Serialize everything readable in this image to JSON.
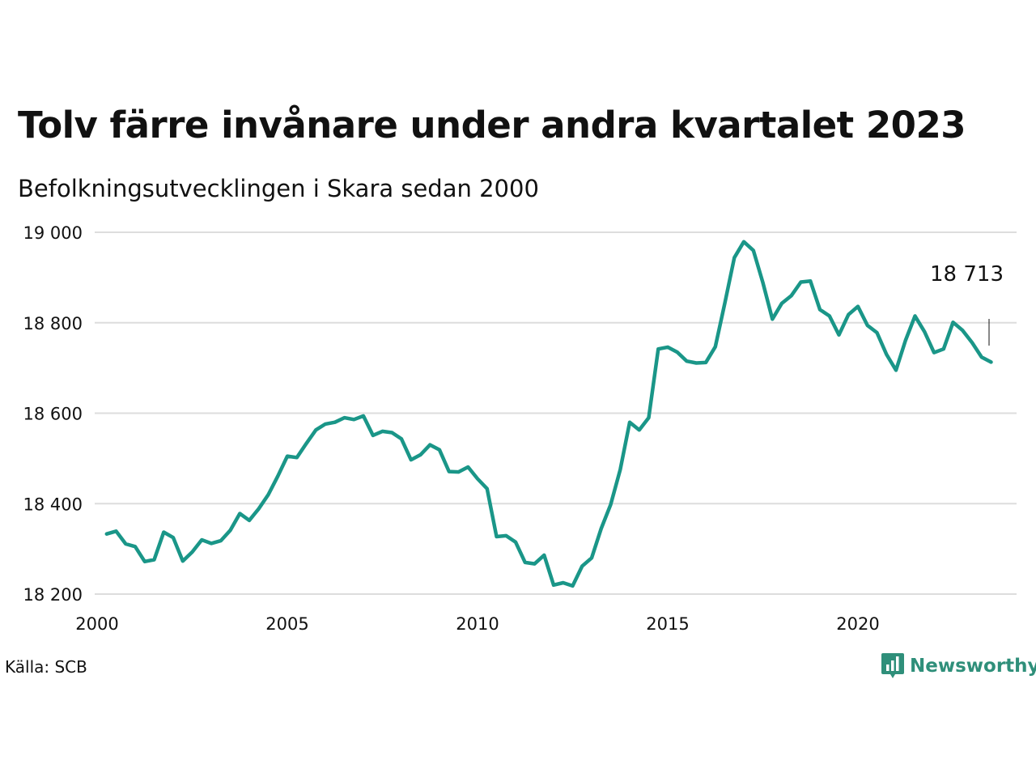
{
  "title": "Tolv färre invånare under andra kvartalet 2023",
  "subtitle": "Befolkningsutvecklingen i Skara sedan 2000",
  "source": "Källa: SCB",
  "brand": {
    "name": "Newsworthy",
    "icon": "newsworthy-logo-icon",
    "color": "#2f8f7a"
  },
  "colors": {
    "line": "#1a9688",
    "grid": "#dddddd",
    "text": "#111111"
  },
  "chart_data": {
    "type": "line",
    "title": "",
    "xlabel": "",
    "ylabel": "",
    "xlim": [
      2000,
      2023.5
    ],
    "ylim": [
      18200,
      19000
    ],
    "y_ticks": [
      18200,
      18400,
      18600,
      18800,
      19000
    ],
    "y_tick_labels": [
      "18 200",
      "18 400",
      "18 600",
      "18 800",
      "19 000"
    ],
    "x_ticks": [
      2000,
      2005,
      2010,
      2015,
      2020
    ],
    "x_tick_labels": [
      "2000",
      "2005",
      "2010",
      "2015",
      "2020"
    ],
    "grid": "horizontal",
    "end_label": "18 713",
    "x": [
      2000.25,
      2000.5,
      2000.75,
      2001.0,
      2001.25,
      2001.5,
      2001.75,
      2002.0,
      2002.25,
      2002.5,
      2002.75,
      2003.0,
      2003.25,
      2003.5,
      2003.75,
      2004.0,
      2004.25,
      2004.5,
      2004.75,
      2005.0,
      2005.25,
      2005.5,
      2005.75,
      2006.0,
      2006.25,
      2006.5,
      2006.75,
      2007.0,
      2007.25,
      2007.5,
      2007.75,
      2008.0,
      2008.25,
      2008.5,
      2008.75,
      2009.0,
      2009.25,
      2009.5,
      2009.75,
      2010.0,
      2010.25,
      2010.5,
      2010.75,
      2011.0,
      2011.25,
      2011.5,
      2011.75,
      2012.0,
      2012.25,
      2012.5,
      2012.75,
      2013.0,
      2013.25,
      2013.5,
      2013.75,
      2014.0,
      2014.25,
      2014.5,
      2014.75,
      2015.0,
      2015.25,
      2015.5,
      2015.75,
      2016.0,
      2016.25,
      2016.5,
      2016.75,
      2017.0,
      2017.25,
      2017.5,
      2017.75,
      2018.0,
      2018.25,
      2018.5,
      2018.75,
      2019.0,
      2019.25,
      2019.5,
      2019.75,
      2020.0,
      2020.25,
      2020.5,
      2020.75,
      2021.0,
      2021.25,
      2021.5,
      2021.75,
      2022.0,
      2022.25,
      2022.5,
      2022.75,
      2023.0,
      2023.25,
      2023.5
    ],
    "series": [
      {
        "values": [
          18333,
          18339,
          18311,
          18305,
          18272,
          18276,
          18337,
          18325,
          18273,
          18293,
          18320,
          18312,
          18318,
          18341,
          18378,
          18363,
          18389,
          18420,
          18461,
          18505,
          18502,
          18533,
          18563,
          18576,
          18580,
          18590,
          18586,
          18594,
          18551,
          18560,
          18557,
          18543,
          18497,
          18508,
          18530,
          18519,
          18471,
          18470,
          18481,
          18455,
          18433,
          18327,
          18329,
          18315,
          18270,
          18267,
          18286,
          18220,
          18225,
          18218,
          18262,
          18280,
          18345,
          18398,
          18475,
          18580,
          18563,
          18590,
          18742,
          18746,
          18735,
          18715,
          18711,
          18712,
          18747,
          18843,
          18944,
          18979,
          18960,
          18889,
          18808,
          18843,
          18860,
          18890,
          18892,
          18829,
          18815,
          18773,
          18818,
          18836,
          18794,
          18778,
          18730,
          18695,
          18761,
          18815,
          18780,
          18734,
          18742,
          18801,
          18783,
          18756,
          18724,
          18713
        ]
      }
    ]
  }
}
